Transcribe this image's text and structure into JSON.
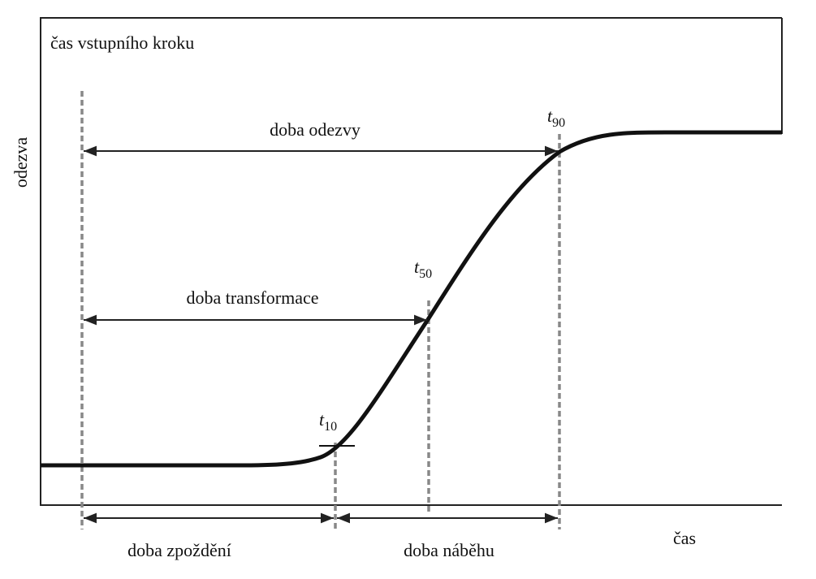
{
  "frame_label": "čas vstupního kroku",
  "y_label": "odezva",
  "x_label": "čas",
  "markers": [
    {
      "base": "t",
      "sub": "10"
    },
    {
      "base": "t",
      "sub": "50"
    },
    {
      "base": "t",
      "sub": "90"
    }
  ],
  "intervals": {
    "response": "doba odezvy",
    "transformation": "doba transformace",
    "delay": "doba zpoždění",
    "rise": "doba náběhu"
  }
}
